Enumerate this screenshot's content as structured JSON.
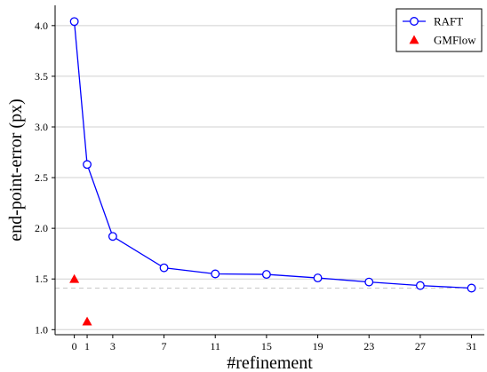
{
  "chart_data": {
    "type": "line",
    "xlabel": "#refinement",
    "ylabel": "end-point-error (px)",
    "ylim": [
      0.95,
      4.2
    ],
    "xlim": [
      -1.5,
      32
    ],
    "x_ticks": [
      0,
      1,
      3,
      7,
      11,
      15,
      19,
      23,
      27,
      31
    ],
    "y_ticks": [
      1.0,
      1.5,
      2.0,
      2.5,
      3.0,
      3.5,
      4.0
    ],
    "y_tick_labels": [
      "1.0",
      "1.5",
      "2.0",
      "2.5",
      "3.0",
      "3.5",
      "4.0"
    ],
    "grid": "horizontal",
    "reference_line": 1.41,
    "legend_position": "top-right",
    "series": [
      {
        "name": "RAFT",
        "marker": "circle",
        "color": "#0000ff",
        "x": [
          0,
          1,
          3,
          7,
          11,
          15,
          19,
          23,
          27,
          31
        ],
        "y": [
          4.04,
          2.63,
          1.92,
          1.61,
          1.55,
          1.545,
          1.51,
          1.47,
          1.435,
          1.41
        ]
      },
      {
        "name": "GMFlow",
        "marker": "triangle",
        "color": "#ff0000",
        "x": [
          0,
          1
        ],
        "y": [
          1.5,
          1.08
        ]
      }
    ]
  }
}
